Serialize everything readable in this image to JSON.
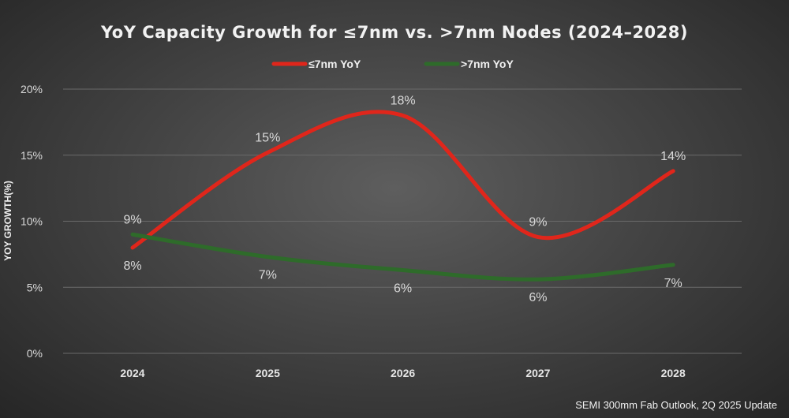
{
  "chart_data": {
    "type": "line",
    "title": "YoY Capacity Growth for ≤7nm vs. >7nm Nodes (2024–2028)",
    "xlabel": "",
    "ylabel": "YOY GROWTH(%)",
    "categories": [
      "2024",
      "2025",
      "2026",
      "2027",
      "2028"
    ],
    "yticks": [
      "0%",
      "5%",
      "10%",
      "15%",
      "20%"
    ],
    "ylim": [
      0,
      20
    ],
    "grid": true,
    "legend_position": "top",
    "smooth": true,
    "series": [
      {
        "name": "≤7nm YoY",
        "color": "#e0261b",
        "values": [
          8,
          15.2,
          18,
          8.8,
          13.8
        ],
        "labels": [
          "8%",
          "15%",
          "18%",
          "9%",
          "14%"
        ],
        "label_side": [
          "below",
          "above",
          "above",
          "above",
          "above"
        ]
      },
      {
        "name": ">7nm YoY",
        "color": "#2e6b2a",
        "values": [
          9,
          7.3,
          6.3,
          5.6,
          6.7
        ],
        "labels": [
          "9%",
          "7%",
          "6%",
          "6%",
          "7%"
        ],
        "label_side": [
          "above",
          "below",
          "below",
          "below",
          "below"
        ]
      }
    ],
    "source": "SEMI 300mm Fab Outlook,  2Q 2025 Update"
  }
}
